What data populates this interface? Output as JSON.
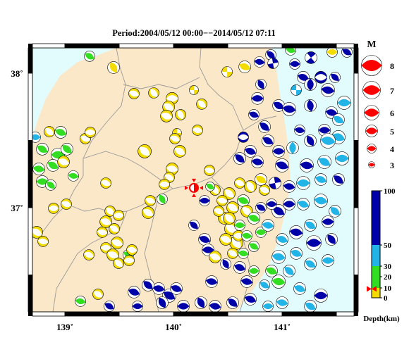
{
  "title": "Period:2004/05/12 00:00−−2014/05/12 07:11",
  "chart_data": {
    "type": "scatter",
    "lon_range": [
      138.701,
      141.662
    ],
    "lat_range": [
      36.225,
      38.188
    ],
    "lon_ticks": [
      {
        "value": 139,
        "label": "139˚"
      },
      {
        "value": 140,
        "label": "140˚"
      },
      {
        "value": 141,
        "label": "141˚"
      }
    ],
    "lat_ticks": [
      {
        "value": 38,
        "label": "38˚"
      },
      {
        "value": 37,
        "label": "37˚"
      }
    ],
    "colors": {
      "land": "#fbe8c8",
      "sea": "#e2fbfd",
      "boundary": "#9a9a9a"
    },
    "marker": {
      "lon": 140.188,
      "lat": 37.147,
      "depth_km": 9,
      "color": "#ff0000"
    },
    "magnitude_legend": {
      "title": "M",
      "values": [
        8,
        7,
        6,
        5,
        4,
        3
      ],
      "color": "#ff0000"
    },
    "depth_colorbar": {
      "label": "Depth(km)",
      "ticks": [
        100,
        50,
        30,
        20,
        10,
        0
      ],
      "bands": [
        {
          "min": 0,
          "max": 10,
          "color": "#f5dc00"
        },
        {
          "min": 10,
          "max": 30,
          "color": "#33dd22"
        },
        {
          "min": 30,
          "max": 50,
          "color": "#22b4e6"
        },
        {
          "min": 50,
          "max": 100,
          "color": "#0000a8"
        }
      ]
    },
    "events": [
      [
        139.227,
        38.126,
        15,
        4.5,
        30,
        90
      ],
      [
        139.448,
        38.042,
        5,
        5.0,
        60,
        90
      ],
      [
        140.656,
        38.047,
        5,
        5.0,
        20,
        90
      ],
      [
        140.494,
        38.01,
        5,
        4.5,
        0,
        0
      ],
      [
        140.792,
        38.084,
        70,
        4.5,
        10,
        90
      ],
      [
        140.896,
        38.136,
        70,
        4.5,
        40,
        90
      ],
      [
        140.916,
        38.073,
        80,
        4.5,
        80,
        0
      ],
      [
        141.078,
        38.173,
        20,
        4.5,
        20,
        90
      ],
      [
        141.117,
        38.068,
        60,
        4.5,
        0,
        90
      ],
      [
        141.266,
        38.115,
        70,
        5.0,
        50,
        0
      ],
      [
        141.461,
        38.157,
        5,
        4.5,
        0,
        90
      ],
      [
        141.597,
        38.157,
        60,
        4.5,
        30,
        90
      ],
      [
        141.195,
        37.969,
        70,
        5.0,
        20,
        90
      ],
      [
        141.357,
        37.969,
        60,
        5.0,
        0,
        -90
      ],
      [
        141.487,
        37.969,
        60,
        4.5,
        40,
        90
      ],
      [
        141.26,
        37.916,
        55,
        5.0,
        90,
        90
      ],
      [
        141.422,
        37.874,
        60,
        5.5,
        10,
        90
      ],
      [
        141.13,
        37.874,
        40,
        4.5,
        0,
        0
      ],
      [
        140.805,
        37.916,
        70,
        4.5,
        60,
        90
      ],
      [
        140.773,
        37.812,
        80,
        5.0,
        0,
        90
      ],
      [
        140.968,
        37.759,
        70,
        5.0,
        30,
        90
      ],
      [
        141.065,
        37.733,
        60,
        5.5,
        10,
        90
      ],
      [
        141.26,
        37.759,
        60,
        5.0,
        80,
        90
      ],
      [
        141.455,
        37.707,
        55,
        5.0,
        10,
        90
      ],
      [
        141.571,
        37.78,
        40,
        5.5,
        0,
        90
      ],
      [
        141.519,
        37.654,
        40,
        5.0,
        30,
        90
      ],
      [
        140.74,
        37.691,
        70,
        4.5,
        20,
        90
      ],
      [
        140.838,
        37.602,
        60,
        5.0,
        40,
        90
      ],
      [
        141.162,
        37.576,
        70,
        4.5,
        10,
        90
      ],
      [
        141.39,
        37.576,
        55,
        5.0,
        0,
        90
      ],
      [
        141.519,
        37.524,
        40,
        5.5,
        20,
        90
      ],
      [
        141.422,
        37.497,
        40,
        6.0,
        10,
        90
      ],
      [
        141.26,
        37.497,
        60,
        5.0,
        60,
        90
      ],
      [
        141.097,
        37.445,
        35,
        5.0,
        90,
        90
      ],
      [
        140.968,
        37.419,
        70,
        5.0,
        0,
        90
      ],
      [
        140.87,
        37.497,
        60,
        5.0,
        30,
        90
      ],
      [
        140.708,
        37.419,
        70,
        5.0,
        20,
        90
      ],
      [
        140.61,
        37.366,
        80,
        5.0,
        40,
        90
      ],
      [
        140.773,
        37.34,
        60,
        5.0,
        10,
        90
      ],
      [
        140.643,
        37.524,
        70,
        4.5,
        0,
        -90
      ],
      [
        141.0,
        37.314,
        60,
        5.5,
        20,
        90
      ],
      [
        141.227,
        37.314,
        60,
        5.5,
        10,
        90
      ],
      [
        141.39,
        37.34,
        35,
        5.5,
        30,
        90
      ],
      [
        141.552,
        37.366,
        40,
        5.5,
        0,
        90
      ],
      [
        141.519,
        37.209,
        55,
        5.0,
        40,
        90
      ],
      [
        141.357,
        37.209,
        40,
        5.0,
        20,
        90
      ],
      [
        141.195,
        37.183,
        40,
        5.5,
        0,
        90
      ],
      [
        141.065,
        37.157,
        60,
        5.0,
        10,
        90
      ],
      [
        140.935,
        37.183,
        70,
        5.0,
        80,
        0
      ],
      [
        140.805,
        37.209,
        5,
        5.0,
        30,
        90
      ],
      [
        140.708,
        37.157,
        5,
        5.0,
        60,
        -90
      ],
      [
        140.61,
        37.183,
        5,
        4.5,
        20,
        -90
      ],
      [
        140.513,
        37.105,
        5,
        5.0,
        40,
        -90
      ],
      [
        140.448,
        37.052,
        5,
        4.5,
        10,
        -90
      ],
      [
        140.383,
        37.131,
        5,
        4.5,
        50,
        -90
      ],
      [
        140.545,
        37.0,
        5,
        5.0,
        30,
        -90
      ],
      [
        140.643,
        37.052,
        15,
        5.0,
        20,
        90
      ],
      [
        140.675,
        36.974,
        5,
        5.0,
        40,
        -90
      ],
      [
        140.468,
        36.921,
        5,
        5.0,
        60,
        -90
      ],
      [
        140.532,
        36.843,
        5,
        5.5,
        30,
        -90
      ],
      [
        140.61,
        36.869,
        15,
        4.5,
        0,
        90
      ],
      [
        140.578,
        36.738,
        5,
        5.5,
        50,
        -90
      ],
      [
        140.481,
        36.764,
        5,
        5.0,
        20,
        -90
      ],
      [
        140.643,
        36.66,
        15,
        4.5,
        10,
        90
      ],
      [
        140.74,
        36.712,
        20,
        4.5,
        30,
        90
      ],
      [
        140.805,
        36.817,
        15,
        4.5,
        0,
        90
      ],
      [
        140.74,
        36.921,
        15,
        5.0,
        20,
        90
      ],
      [
        140.87,
        36.869,
        40,
        5.0,
        10,
        90
      ],
      [
        140.968,
        36.974,
        60,
        5.5,
        30,
        90
      ],
      [
        141.065,
        37.026,
        60,
        5.0,
        0,
        90
      ],
      [
        141.195,
        37.026,
        40,
        5.0,
        20,
        90
      ],
      [
        141.357,
        37.052,
        40,
        5.5,
        10,
        90
      ],
      [
        141.487,
        36.974,
        40,
        5.0,
        40,
        90
      ],
      [
        141.422,
        36.895,
        60,
        5.0,
        0,
        90
      ],
      [
        141.26,
        36.869,
        40,
        5.0,
        30,
        90
      ],
      [
        141.13,
        36.817,
        60,
        5.5,
        10,
        90
      ],
      [
        141.0,
        36.764,
        40,
        5.0,
        20,
        90
      ],
      [
        141.292,
        36.738,
        60,
        6.0,
        0,
        90
      ],
      [
        141.455,
        36.764,
        55,
        5.0,
        50,
        90
      ],
      [
        141.13,
        36.66,
        40,
        5.0,
        20,
        90
      ],
      [
        140.968,
        36.634,
        40,
        5.5,
        10,
        90
      ],
      [
        141.26,
        36.581,
        40,
        5.0,
        30,
        90
      ],
      [
        141.422,
        36.607,
        35,
        5.0,
        0,
        90
      ],
      [
        141.065,
        36.529,
        40,
        5.0,
        40,
        90
      ],
      [
        140.903,
        36.529,
        20,
        5.0,
        20,
        90
      ],
      [
        140.968,
        36.45,
        20,
        5.5,
        10,
        90
      ],
      [
        140.838,
        36.424,
        40,
        4.5,
        30,
        90
      ],
      [
        140.74,
        36.529,
        15,
        4.5,
        0,
        90
      ],
      [
        140.61,
        36.555,
        60,
        5.0,
        20,
        90
      ],
      [
        140.481,
        36.581,
        70,
        4.5,
        60,
        90
      ],
      [
        140.675,
        36.45,
        60,
        5.0,
        10,
        90
      ],
      [
        141.162,
        36.398,
        40,
        5.0,
        20,
        90
      ],
      [
        141.357,
        36.346,
        60,
        5.5,
        0,
        90
      ],
      [
        141.26,
        36.267,
        40,
        5.0,
        30,
        90
      ],
      [
        141.0,
        36.293,
        35,
        5.0,
        10,
        90
      ],
      [
        140.87,
        36.267,
        40,
        4.5,
        0,
        90
      ],
      [
        140.708,
        36.319,
        60,
        5.0,
        20,
        90
      ],
      [
        140.545,
        36.293,
        70,
        5.0,
        40,
        90
      ],
      [
        140.383,
        36.267,
        70,
        5.0,
        10,
        90
      ],
      [
        140.253,
        36.293,
        70,
        5.0,
        60,
        90
      ],
      [
        140.091,
        36.267,
        70,
        5.0,
        0,
        90
      ],
      [
        139.961,
        36.346,
        70,
        5.5,
        30,
        90
      ],
      [
        139.864,
        36.398,
        70,
        5.0,
        10,
        90
      ],
      [
        139.766,
        36.424,
        80,
        5.0,
        40,
        90
      ],
      [
        139.636,
        36.372,
        80,
        5.0,
        20,
        90
      ],
      [
        139.669,
        36.267,
        80,
        4.5,
        0,
        90
      ],
      [
        139.896,
        36.293,
        70,
        5.0,
        60,
        90
      ],
      [
        140.026,
        36.398,
        70,
        5.0,
        20,
        90
      ],
      [
        139.409,
        36.267,
        70,
        4.5,
        30,
        90
      ],
      [
        140.351,
        36.45,
        70,
        5.0,
        10,
        90
      ],
      [
        140.286,
        36.764,
        70,
        5.0,
        20,
        90
      ],
      [
        140.318,
        36.686,
        70,
        5.0,
        0,
        90
      ],
      [
        140.188,
        36.869,
        70,
        4.5,
        40,
        90
      ],
      [
        140.383,
        36.634,
        5,
        5.0,
        20,
        -90
      ],
      [
        140.286,
        37.052,
        70,
        4.5,
        0,
        90
      ],
      [
        140.331,
        37.277,
        5,
        4.5,
        10,
        -90
      ],
      [
        140.338,
        37.157,
        15,
        4.0,
        30,
        90
      ],
      [
        139.636,
        37.848,
        5,
        4.5,
        20,
        -90
      ],
      [
        139.818,
        37.853,
        5,
        4.5,
        50,
        -90
      ],
      [
        139.987,
        37.812,
        5,
        5.0,
        0,
        -90
      ],
      [
        139.955,
        37.749,
        5,
        5.0,
        30,
        -90
      ],
      [
        139.935,
        37.681,
        5,
        5.0,
        20,
        -90
      ],
      [
        140.188,
        37.874,
        5,
        4.0,
        0,
        0
      ],
      [
        140.26,
        37.77,
        5,
        4.5,
        40,
        -90
      ],
      [
        140.221,
        37.576,
        5,
        4.5,
        10,
        -90
      ],
      [
        140.065,
        37.691,
        5,
        4.5,
        60,
        -90
      ],
      [
        140.032,
        37.555,
        5,
        4.0,
        0,
        0
      ],
      [
        140.013,
        37.513,
        5,
        4.5,
        20,
        -90
      ],
      [
        140.058,
        37.419,
        5,
        5.0,
        30,
        -90
      ],
      [
        139.734,
        37.419,
        5,
        5.5,
        40,
        -90
      ],
      [
        139.987,
        37.288,
        5,
        5.0,
        10,
        -90
      ],
      [
        139.961,
        37.225,
        5,
        4.5,
        30,
        -90
      ],
      [
        139.916,
        37.173,
        5,
        4.5,
        0,
        -90
      ],
      [
        139.786,
        37.052,
        5,
        4.5,
        20,
        -90
      ],
      [
        139.896,
        37.063,
        15,
        4.5,
        60,
        90
      ],
      [
        139.766,
        36.963,
        5,
        5.0,
        30,
        -90
      ],
      [
        139.188,
        37.513,
        5,
        4.5,
        20,
        -90
      ],
      [
        139.234,
        37.56,
        5,
        4.5,
        0,
        -90
      ],
      [
        138.857,
        37.565,
        5,
        4.5,
        40,
        -90
      ],
      [
        138.727,
        37.524,
        40,
        4.5,
        0,
        90
      ],
      [
        138.961,
        37.56,
        15,
        5.0,
        20,
        90
      ],
      [
        138.792,
        37.435,
        15,
        5.0,
        30,
        90
      ],
      [
        138.935,
        37.393,
        15,
        5.5,
        0,
        90
      ],
      [
        139.019,
        37.435,
        15,
        5.0,
        40,
        90
      ],
      [
        138.76,
        37.288,
        15,
        5.0,
        10,
        90
      ],
      [
        138.89,
        37.314,
        15,
        5.0,
        30,
        90
      ],
      [
        138.987,
        37.34,
        5,
        5.0,
        20,
        -90
      ],
      [
        138.792,
        37.194,
        15,
        5.0,
        0,
        90
      ],
      [
        138.87,
        37.168,
        15,
        4.5,
        40,
        90
      ],
      [
        139.078,
        37.236,
        15,
        4.5,
        10,
        90
      ],
      [
        139.013,
        37.026,
        5,
        4.5,
        20,
        -90
      ],
      [
        138.896,
        36.995,
        5,
        4.5,
        0,
        -90
      ],
      [
        138.74,
        36.817,
        5,
        5.0,
        30,
        -90
      ],
      [
        138.799,
        36.749,
        5,
        4.5,
        10,
        -90
      ],
      [
        139.377,
        37.183,
        5,
        4.5,
        20,
        -90
      ],
      [
        139.416,
        36.974,
        5,
        4.5,
        40,
        -90
      ],
      [
        139.494,
        36.942,
        5,
        4.5,
        0,
        -90
      ],
      [
        139.377,
        36.895,
        5,
        5.0,
        20,
        -90
      ],
      [
        139.455,
        36.843,
        5,
        4.5,
        30,
        -90
      ],
      [
        139.344,
        36.817,
        5,
        4.5,
        10,
        -90
      ],
      [
        139.481,
        36.738,
        5,
        5.0,
        20,
        -90
      ],
      [
        139.377,
        36.702,
        5,
        4.5,
        0,
        -90
      ],
      [
        139.584,
        36.649,
        15,
        4.5,
        30,
        90
      ],
      [
        139.617,
        36.686,
        5,
        4.5,
        10,
        -90
      ],
      [
        139.442,
        36.649,
        5,
        5.0,
        20,
        -90
      ],
      [
        139.494,
        36.586,
        5,
        4.5,
        40,
        -90
      ],
      [
        139.591,
        36.607,
        5,
        4.5,
        0,
        -90
      ],
      [
        139.221,
        36.649,
        5,
        4.5,
        20,
        -90
      ],
      [
        139.305,
        36.356,
        5,
        4.5,
        30,
        -90
      ],
      [
        139.143,
        36.304,
        15,
        4.5,
        10,
        90
      ],
      [
        140.416,
        36.974,
        5,
        4.5,
        20,
        -90
      ],
      [
        140.513,
        36.921,
        5,
        5.0,
        40,
        -90
      ],
      [
        140.597,
        36.791,
        5,
        4.5,
        0,
        -90
      ],
      [
        140.545,
        36.66,
        5,
        4.5,
        30,
        -90
      ],
      [
        140.675,
        36.791,
        15,
        4.5,
        10,
        90
      ],
      [
        140.838,
        37.131,
        5,
        4.5,
        20,
        -90
      ],
      [
        140.903,
        37.026,
        70,
        4.5,
        0,
        90
      ],
      [
        140.805,
        37.0,
        60,
        4.5,
        30,
        90
      ]
    ]
  }
}
